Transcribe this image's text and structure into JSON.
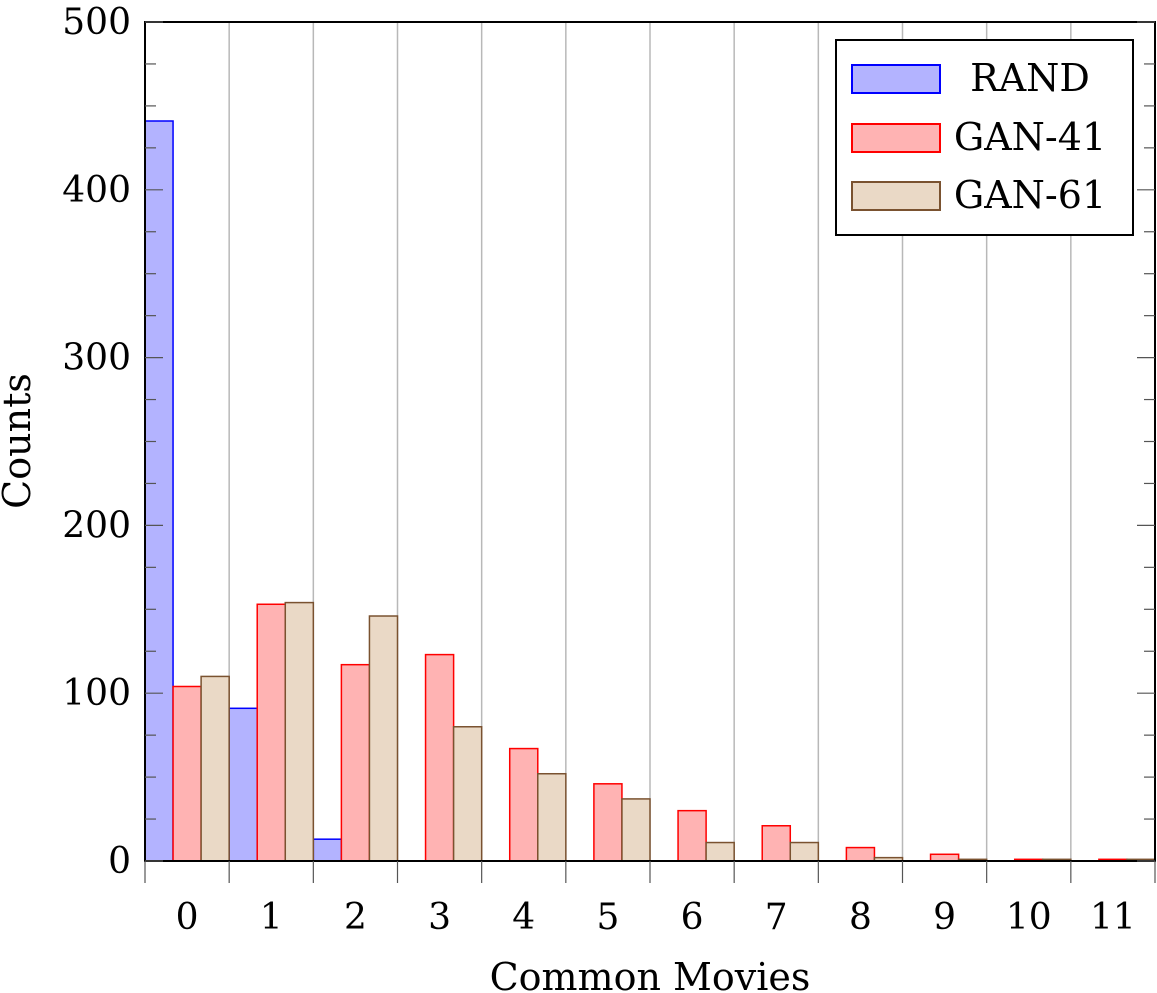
{
  "chart_data": {
    "type": "bar",
    "title": "",
    "xlabel": "Common Movies",
    "ylabel": "Counts",
    "categories": [
      "0",
      "1",
      "2",
      "3",
      "4",
      "5",
      "6",
      "7",
      "8",
      "9",
      "10",
      "11"
    ],
    "ylim": [
      0,
      500
    ],
    "yticks": [
      "0",
      "100",
      "200",
      "300",
      "400",
      "500"
    ],
    "grid": "vertical",
    "legend_position": "top-right",
    "series": [
      {
        "name": "RAND",
        "color": "#b3b3ff",
        "stroke": "#0000ff",
        "values": [
          441,
          91,
          13,
          0,
          0,
          0,
          0,
          0,
          0,
          0,
          0,
          0
        ]
      },
      {
        "name": "GAN-41",
        "color": "#ffb3b3",
        "stroke": "#ff0000",
        "values": [
          104,
          153,
          117,
          123,
          67,
          46,
          30,
          21,
          8,
          4,
          1,
          1
        ]
      },
      {
        "name": "GAN-61",
        "color": "#ead9c6",
        "stroke": "#7a5230",
        "values": [
          110,
          154,
          146,
          80,
          52,
          37,
          11,
          11,
          2,
          1,
          1,
          1
        ]
      }
    ]
  }
}
